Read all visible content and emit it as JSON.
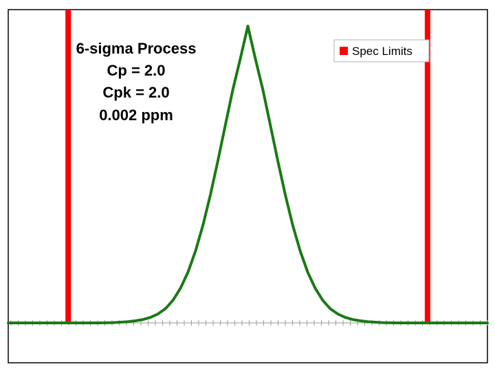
{
  "chart_data": {
    "type": "line",
    "title": "",
    "xlabel": "",
    "ylabel": "",
    "annotations": [
      "6-sigma Process",
      "Cp = 2.0",
      "Cpk = 2.0",
      "0.002 ppm"
    ],
    "legend": {
      "placement": "top-right",
      "entries": [
        {
          "label": "Spec Limits",
          "color": "#ff0000"
        }
      ]
    },
    "grid": false,
    "xlim": [
      -8,
      8
    ],
    "ylim": [
      0,
      1.1
    ],
    "series": [
      {
        "color": "#1a7a14",
        "style": "line",
        "x": [
          -8,
          -7.5,
          -7,
          -6.5,
          -6,
          -5.5,
          -5,
          -4.5,
          -4,
          -3.75,
          -3.5,
          -3.25,
          -3,
          -2.75,
          -2.5,
          -2.25,
          -2,
          -1.75,
          -1.5,
          -1.25,
          -1,
          -0.75,
          -0.5,
          -0.25,
          0,
          0.25,
          0.5,
          0.75,
          1,
          1.25,
          1.5,
          1.75,
          2,
          2.25,
          2.5,
          2.75,
          3,
          3.25,
          3.5,
          3.75,
          4,
          4.5,
          5,
          5.5,
          6,
          6.5,
          7,
          7.5,
          8
        ],
        "y": [
          0,
          0,
          0,
          0,
          0,
          0,
          0,
          0.001,
          0.004,
          0.007,
          0.011,
          0.018,
          0.029,
          0.046,
          0.073,
          0.112,
          0.164,
          0.232,
          0.316,
          0.414,
          0.524,
          0.64,
          0.755,
          0.855,
          0.96,
          0.855,
          0.755,
          0.64,
          0.524,
          0.414,
          0.316,
          0.232,
          0.164,
          0.112,
          0.073,
          0.046,
          0.029,
          0.018,
          0.011,
          0.007,
          0.004,
          0.001,
          0,
          0,
          0,
          0,
          0,
          0,
          0
        ]
      },
      {
        "name": "Spec Limits",
        "color": "#ff0000",
        "style": "vertical",
        "x": [
          -6,
          6
        ]
      }
    ]
  }
}
